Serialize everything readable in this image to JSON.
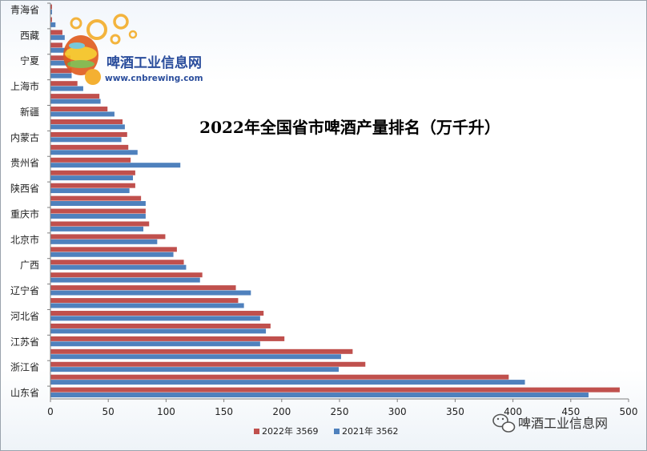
{
  "chart_data": {
    "type": "bar",
    "orientation": "horizontal",
    "title": "2022年全国省市啤酒产量排名（万千升）",
    "xlim": [
      0,
      500
    ],
    "x_ticks": [
      0,
      50,
      100,
      150,
      200,
      250,
      300,
      350,
      400,
      450,
      500
    ],
    "grid": false,
    "legend_position": "bottom",
    "visible_category_labels": [
      "青海省",
      "西藏",
      "宁夏",
      "上海市",
      "新疆",
      "内蒙古",
      "贵州省",
      "陕西省",
      "重庆市",
      "北京市",
      "广西",
      "辽宁省",
      "河北省",
      "江苏省",
      "浙江省",
      "山东省"
    ],
    "series": [
      {
        "name": "2022年 3569",
        "color": "#c0504d",
        "values": [
          1,
          1,
          10,
          10,
          17,
          18,
          23,
          42,
          49,
          62,
          66,
          67,
          69,
          73,
          73,
          78,
          82,
          85,
          99,
          109,
          115,
          131,
          160,
          162,
          184,
          190,
          202,
          261,
          272,
          396,
          492
        ]
      },
      {
        "name": "2021年 3562",
        "color": "#4f81bd",
        "values": [
          1,
          4,
          12,
          14,
          17,
          18,
          28,
          43,
          55,
          64,
          61,
          75,
          112,
          71,
          68,
          82,
          82,
          80,
          92,
          106,
          117,
          129,
          173,
          167,
          181,
          186,
          181,
          251,
          249,
          410,
          465
        ]
      }
    ]
  },
  "logo": {
    "name": "啤酒工业信息网",
    "url": "www.cnbrewing.com"
  },
  "watermark": {
    "text": "啤酒工业信息网"
  }
}
